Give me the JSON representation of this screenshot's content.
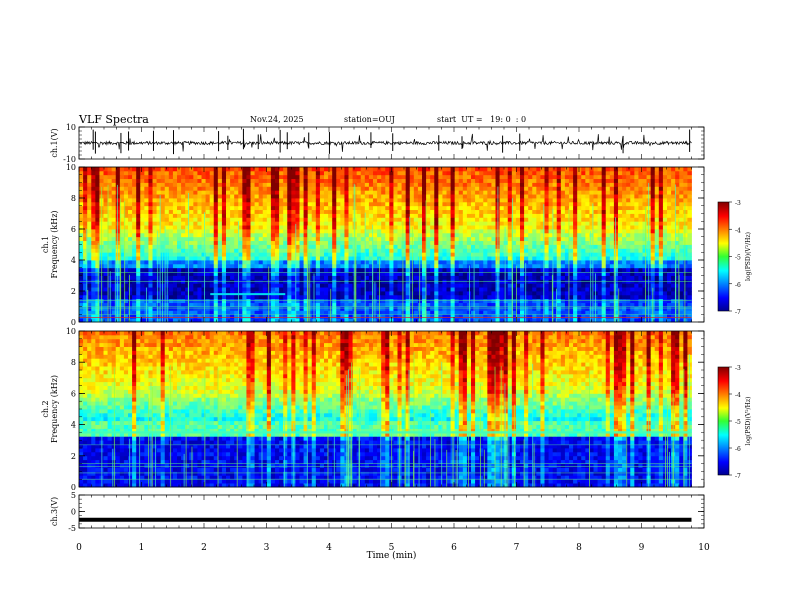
{
  "header": {
    "title": "VLF Spectra",
    "date": "Nov.24, 2025",
    "station": "station=OUJ",
    "start": "start  UT =   19: 0  : 0"
  },
  "chart_data": [
    {
      "type": "line",
      "name": "ch1-waveform",
      "ylabel": "ch.1(V)",
      "ylim": [
        -10,
        10
      ],
      "yticks": [
        "10",
        "-10"
      ],
      "x_range_min": [
        0,
        9.8
      ],
      "baseline_v": 0,
      "noise_v": 1
    },
    {
      "type": "heatmap",
      "name": "ch1-spectrogram",
      "ylabel": "ch.1\nFrequency (kHz)",
      "ylim": [
        0,
        10
      ],
      "yticks": [
        "0",
        "2",
        "4",
        "6",
        "8",
        "10"
      ],
      "x_range_min": [
        0,
        9.8
      ],
      "colorbar": {
        "label": "log(PSD)(V²/Hz)",
        "range": [
          -7,
          -3
        ],
        "ticks": [
          "-3",
          "-4",
          "-5",
          "-6",
          "-7"
        ]
      },
      "features": {
        "dark_band_khz": [
          1.5,
          3.5
        ],
        "emission_khz": 1.8,
        "emission_min": [
          2.1,
          3.3
        ]
      }
    },
    {
      "type": "heatmap",
      "name": "ch2-spectrogram",
      "ylabel": "ch.2\nFrequency (kHz)",
      "ylim": [
        0,
        10
      ],
      "yticks": [
        "0",
        "2",
        "4",
        "6",
        "8",
        "10"
      ],
      "x_range_min": [
        0,
        9.8
      ],
      "colorbar": {
        "label": "log(PSD)(V²/Hz)",
        "range": [
          -7,
          -3
        ],
        "ticks": [
          "-3",
          "-4",
          "-5",
          "-6",
          "-7"
        ]
      },
      "features": {
        "band_khz": 3.5,
        "dark_below_khz": 3.2
      }
    },
    {
      "type": "line",
      "name": "ch3-waveform",
      "ylabel": "ch.3(V)",
      "ylim": [
        -5,
        5
      ],
      "yticks": [
        "5",
        "0",
        "-5"
      ],
      "x_range_min": [
        0,
        9.8
      ],
      "baseline_v": -2.5
    }
  ],
  "xaxis": {
    "label": "Time (min)",
    "range": [
      0,
      10
    ],
    "ticks": [
      "0",
      "1",
      "2",
      "3",
      "4",
      "5",
      "6",
      "7",
      "8",
      "9",
      "10"
    ]
  }
}
